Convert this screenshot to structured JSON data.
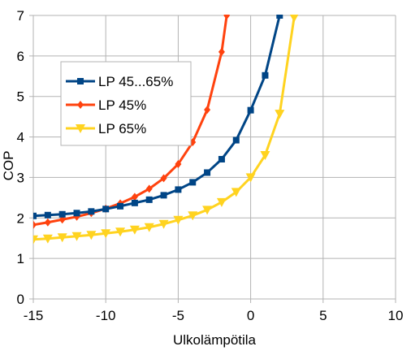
{
  "chart_data": {
    "type": "line",
    "title": "",
    "xlabel": "Ulkolämpötila",
    "ylabel": "COP",
    "xlim": [
      -15,
      10
    ],
    "ylim": [
      0,
      7
    ],
    "xticks": [
      -15,
      -10,
      -5,
      0,
      5,
      10
    ],
    "yticks": [
      0,
      1,
      2,
      3,
      4,
      5,
      6,
      7
    ],
    "xtick_labels": [
      "-15",
      "-10",
      "-5",
      "0",
      "5",
      "10"
    ],
    "ytick_labels": [
      "0",
      "1",
      "2",
      "3",
      "4",
      "5",
      "6",
      "7"
    ],
    "grid": true,
    "legend": "upper-left",
    "series": [
      {
        "name": "LP 45...65%",
        "color": "#004586",
        "marker": "square",
        "x": [
          -15,
          -14,
          -13,
          -12,
          -11,
          -10,
          -9,
          -8,
          -7,
          -6,
          -5,
          -4,
          -3,
          -2,
          -1,
          0,
          1,
          2
        ],
        "y": [
          2.05,
          2.07,
          2.09,
          2.12,
          2.16,
          2.22,
          2.29,
          2.37,
          2.45,
          2.56,
          2.7,
          2.88,
          3.12,
          3.45,
          3.92,
          4.66,
          5.52,
          7.0
        ]
      },
      {
        "name": "LP 45%",
        "color": "#ff420e",
        "marker": "diamond",
        "x": [
          -15,
          -14,
          -13,
          -12,
          -11,
          -10,
          -9,
          -8,
          -7,
          -6,
          -5,
          -4,
          -3,
          -2,
          -1.65
        ],
        "y": [
          1.83,
          1.89,
          1.96,
          2.03,
          2.12,
          2.23,
          2.36,
          2.52,
          2.72,
          2.98,
          3.33,
          3.87,
          4.67,
          6.1,
          7.0
        ]
      },
      {
        "name": "LP 65%",
        "color": "#ffd320",
        "marker": "triangle-down",
        "x": [
          -15,
          -14,
          -13,
          -12,
          -11,
          -10,
          -9,
          -8,
          -7,
          -6,
          -5,
          -4,
          -3,
          -2,
          -1,
          0,
          1,
          2,
          3
        ],
        "y": [
          1.47,
          1.49,
          1.52,
          1.55,
          1.58,
          1.62,
          1.66,
          1.71,
          1.77,
          1.85,
          1.95,
          2.06,
          2.2,
          2.39,
          2.64,
          3.0,
          3.55,
          4.57,
          6.95
        ]
      }
    ]
  }
}
